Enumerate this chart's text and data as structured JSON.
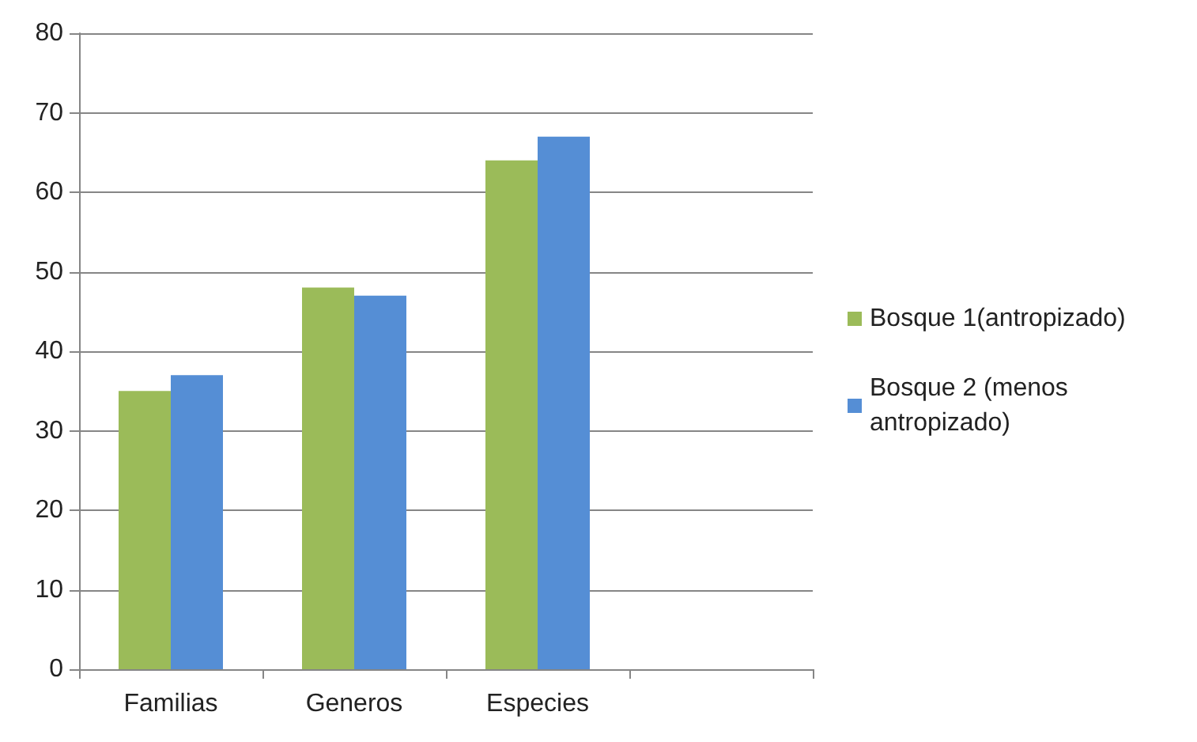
{
  "chart_data": {
    "type": "bar",
    "categories": [
      "Familias",
      "Generos",
      "Especies",
      null
    ],
    "series": [
      {
        "name": "Bosque 1(antropizado)",
        "color": "#9bbb59",
        "values": [
          35,
          48,
          64,
          null
        ]
      },
      {
        "name": "Bosque 2 (menos antropizado)",
        "color": "#558ed5",
        "values": [
          37,
          47,
          67,
          null
        ]
      }
    ],
    "ylim": [
      0,
      80
    ],
    "yticks": [
      0,
      10,
      20,
      30,
      40,
      50,
      60,
      70,
      80
    ],
    "grid": "y",
    "legend": "right"
  }
}
